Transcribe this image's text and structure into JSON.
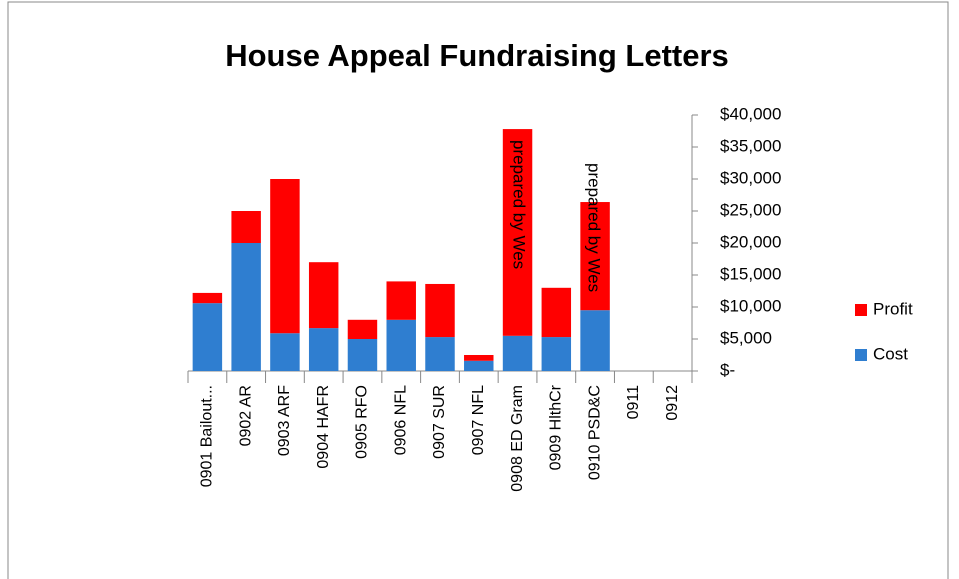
{
  "chart_data": {
    "type": "stacked_bar",
    "title": "House Appeal Fundraising Letters",
    "categories": [
      "0901 Bailout...",
      "0902 AR",
      "0903 ARF",
      "0904 HAFR",
      "0905 RFO",
      "0906 NFL",
      "0907 SUR",
      "0907 NFL",
      "0908 ED Gram",
      "0909 HlthCr",
      "0910 PSD&C",
      "0911",
      "0912"
    ],
    "series": [
      {
        "name": "Cost",
        "color": "#2f7ed0",
        "values": [
          10600,
          20000,
          5900,
          6700,
          5000,
          8000,
          5300,
          1600,
          5500,
          5300,
          9500,
          null,
          null
        ]
      },
      {
        "name": "Profit",
        "color": "#ff0000",
        "values": [
          1600,
          5000,
          24100,
          10300,
          3000,
          6000,
          8300,
          900,
          32300,
          7700,
          16900,
          null,
          null
        ]
      }
    ],
    "ylim": [
      0,
      40000
    ],
    "yticks": [
      {
        "value": 0,
        "label": "$-"
      },
      {
        "value": 5000,
        "label": "$5,000"
      },
      {
        "value": 10000,
        "label": "$10,000"
      },
      {
        "value": 15000,
        "label": "$15,000"
      },
      {
        "value": 20000,
        "label": "$20,000"
      },
      {
        "value": 25000,
        "label": "$25,000"
      },
      {
        "value": 30000,
        "label": "$30,000"
      },
      {
        "value": 35000,
        "label": "$35,000"
      },
      {
        "value": 40000,
        "label": "$40,000"
      }
    ],
    "annotations": [
      "prepared by Wes",
      "prepared by Wes"
    ],
    "legend": "right"
  }
}
